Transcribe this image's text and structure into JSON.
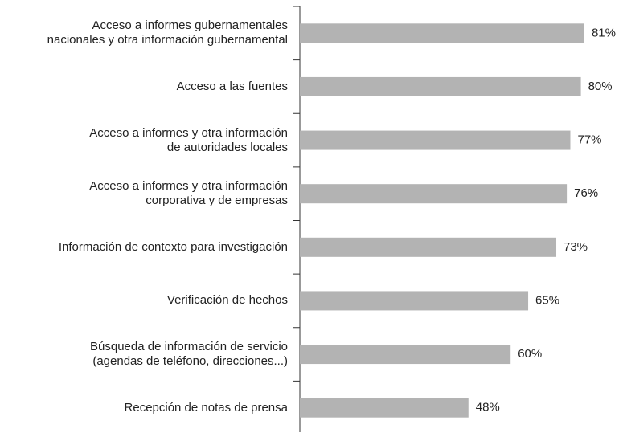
{
  "chart_data": {
    "type": "barh",
    "categories": [
      "Acceso a informes gubernamentales\nnacionales y otra información gubernamental",
      "Acceso a las fuentes",
      "Acceso a informes y otra información\nde autoridades locales",
      "Acceso a informes y otra información\ncorporativa y de empresas",
      "Información de contexto para investigación",
      "Verificación de hechos",
      "Búsqueda de información de servicio\n(agendas de teléfono, direcciones...)",
      "Recepción de notas de prensa"
    ],
    "values": [
      81,
      80,
      77,
      76,
      73,
      65,
      60,
      48
    ],
    "value_labels": [
      "81%",
      "80%",
      "77%",
      "76%",
      "73%",
      "65%",
      "60%",
      "48%"
    ],
    "color": "#b3b3b3",
    "xlim": [
      0,
      100
    ]
  }
}
